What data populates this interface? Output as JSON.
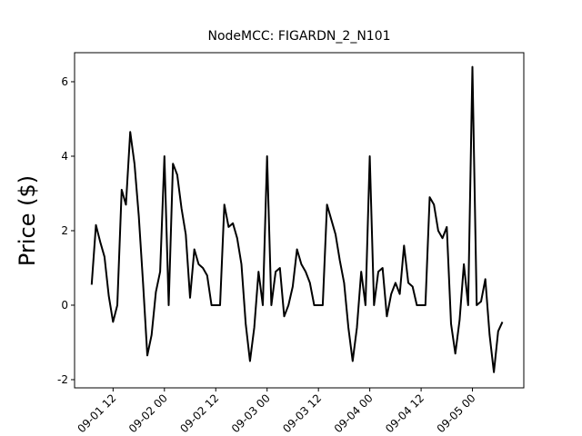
{
  "chart_data": {
    "type": "line",
    "title": "NodeMCC: FIGARDN_2_N101",
    "y_label": "Price ($)",
    "x": [
      "09-01 07",
      "09-01 08",
      "09-01 09",
      "09-01 10",
      "09-01 11",
      "09-01 12",
      "09-01 13",
      "09-01 14",
      "09-01 15",
      "09-01 16",
      "09-01 17",
      "09-01 18",
      "09-01 19",
      "09-01 20",
      "09-01 21",
      "09-01 22",
      "09-01 23",
      "09-02 00",
      "09-02 01",
      "09-02 02",
      "09-02 03",
      "09-02 04",
      "09-02 05",
      "09-02 06",
      "09-02 07",
      "09-02 08",
      "09-02 09",
      "09-02 10",
      "09-02 11",
      "09-02 12",
      "09-02 13",
      "09-02 14",
      "09-02 15",
      "09-02 16",
      "09-02 17",
      "09-02 18",
      "09-02 19",
      "09-02 20",
      "09-02 21",
      "09-02 22",
      "09-02 23",
      "09-03 00",
      "09-03 01",
      "09-03 02",
      "09-03 03",
      "09-03 04",
      "09-03 05",
      "09-03 06",
      "09-03 07",
      "09-03 08",
      "09-03 09",
      "09-03 10",
      "09-03 11",
      "09-03 12",
      "09-03 13",
      "09-03 14",
      "09-03 15",
      "09-03 16",
      "09-03 17",
      "09-03 18",
      "09-03 19",
      "09-03 20",
      "09-03 21",
      "09-03 22",
      "09-03 23",
      "09-04 00",
      "09-04 01",
      "09-04 02",
      "09-04 03",
      "09-04 04",
      "09-04 05",
      "09-04 06",
      "09-04 07",
      "09-04 08",
      "09-04 09",
      "09-04 10",
      "09-04 11",
      "09-04 12",
      "09-04 13",
      "09-04 14",
      "09-04 15",
      "09-04 16",
      "09-04 17",
      "09-04 18",
      "09-04 19",
      "09-04 20",
      "09-04 21",
      "09-04 22",
      "09-04 23",
      "09-05 00",
      "09-05 01",
      "09-05 02",
      "09-05 03",
      "09-05 04",
      "09-05 05",
      "09-05 06",
      "09-05 07"
    ],
    "series": [
      {
        "name": "Price",
        "color": "#000000",
        "values": [
          0.55,
          2.15,
          1.7,
          1.3,
          0.25,
          -0.45,
          0,
          3.1,
          2.7,
          4.65,
          3.8,
          2.4,
          0.6,
          -1.35,
          -0.8,
          0.35,
          0.9,
          4.0,
          0,
          3.8,
          3.5,
          2.6,
          1.9,
          0.2,
          1.5,
          1.1,
          1.0,
          0.8,
          0,
          0,
          0,
          2.7,
          2.1,
          2.2,
          1.8,
          1.1,
          -0.5,
          -1.5,
          -0.6,
          0.9,
          0,
          4.0,
          0,
          0.9,
          1.0,
          -0.3,
          0,
          0.5,
          1.5,
          1.1,
          0.9,
          0.6,
          0,
          0,
          0,
          2.7,
          2.3,
          1.9,
          1.2,
          0.6,
          -0.6,
          -1.5,
          -0.6,
          0.9,
          0,
          4.0,
          0,
          0.9,
          1.0,
          -0.3,
          0.3,
          0.6,
          0.3,
          1.6,
          0.6,
          0.5,
          0,
          0,
          0,
          2.9,
          2.7,
          2.0,
          1.8,
          2.1,
          -0.5,
          -1.3,
          -0.4,
          1.1,
          0,
          6.4,
          0,
          0.1,
          0.7,
          -0.8,
          -1.8,
          -0.7,
          -0.45
        ]
      }
    ],
    "xlim": [
      "09-01 03",
      "09-05 12"
    ],
    "ylim": [
      -2.22,
      6.78
    ],
    "xticks": [
      "09-01 12",
      "09-02 00",
      "09-02 12",
      "09-03 00",
      "09-03 12",
      "09-04 00",
      "09-04 12",
      "09-05 00"
    ],
    "yticks": [
      -2,
      0,
      2,
      4,
      6
    ]
  }
}
